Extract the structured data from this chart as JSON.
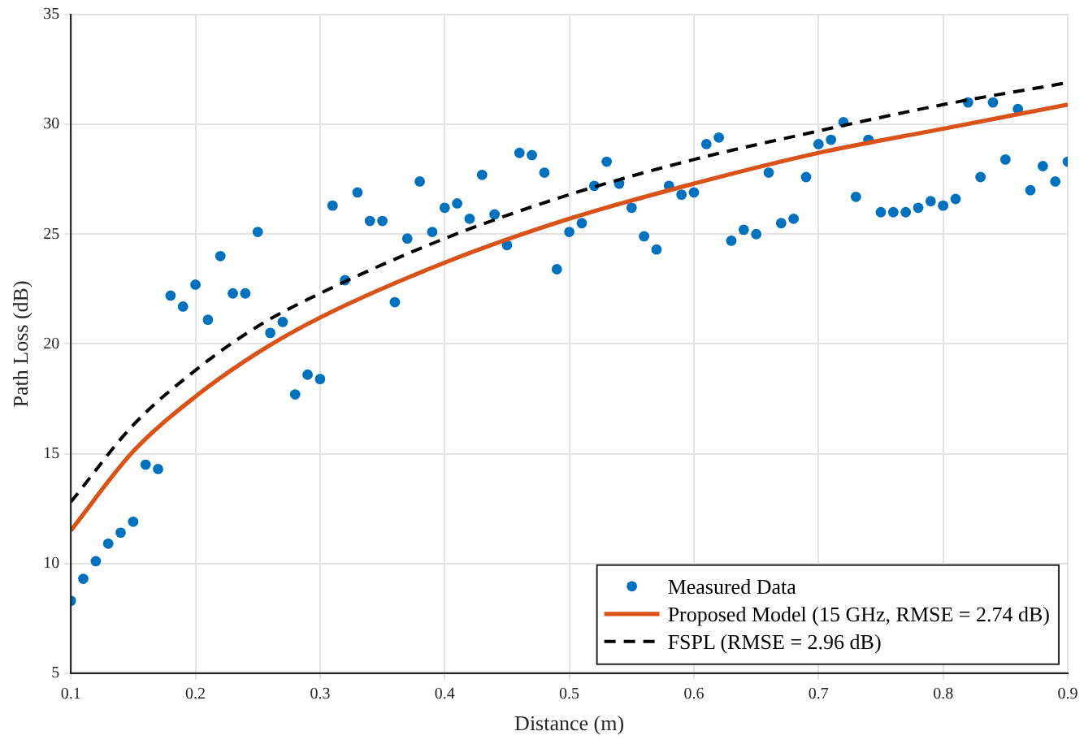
{
  "chart_data": {
    "type": "scatter",
    "xlabel": "Distance (m)",
    "ylabel": "Path Loss (dB)",
    "xlim": [
      0.1,
      0.9
    ],
    "xticks": [
      0.1,
      0.2,
      0.3,
      0.4,
      0.5,
      0.6,
      0.7,
      0.8,
      0.9
    ],
    "ylim": [
      5,
      35
    ],
    "yticks": [
      5,
      10,
      15,
      20,
      25,
      30,
      35
    ],
    "grid": true,
    "legend": "bottom right",
    "series": [
      {
        "name": "Measured Data",
        "type": "scatter",
        "marker": "circle",
        "color": "#0072bd",
        "x": [
          0.1,
          0.11,
          0.12,
          0.13,
          0.14,
          0.15,
          0.16,
          0.17,
          0.18,
          0.19,
          0.2,
          0.21,
          0.22,
          0.23,
          0.24,
          0.25,
          0.26,
          0.27,
          0.28,
          0.29,
          0.3,
          0.31,
          0.32,
          0.33,
          0.34,
          0.35,
          0.36,
          0.37,
          0.38,
          0.39,
          0.4,
          0.41,
          0.42,
          0.43,
          0.44,
          0.45,
          0.46,
          0.47,
          0.48,
          0.49,
          0.5,
          0.51,
          0.52,
          0.53,
          0.54,
          0.55,
          0.56,
          0.57,
          0.58,
          0.59,
          0.6,
          0.61,
          0.62,
          0.63,
          0.64,
          0.65,
          0.66,
          0.67,
          0.68,
          0.69,
          0.7,
          0.71,
          0.72,
          0.73,
          0.74,
          0.75,
          0.76,
          0.77,
          0.78,
          0.79,
          0.8,
          0.81,
          0.82,
          0.83,
          0.84,
          0.85,
          0.86,
          0.87,
          0.88,
          0.89,
          0.9
        ],
        "values": [
          8.3,
          9.3,
          10.1,
          10.9,
          11.4,
          11.9,
          14.5,
          14.3,
          22.2,
          21.7,
          22.7,
          21.1,
          24.0,
          22.3,
          22.3,
          25.1,
          20.5,
          21.0,
          17.7,
          18.6,
          18.4,
          26.3,
          22.9,
          26.9,
          25.6,
          25.6,
          21.9,
          24.8,
          27.4,
          25.1,
          26.2,
          26.4,
          25.7,
          27.7,
          25.9,
          24.5,
          28.7,
          28.6,
          27.8,
          23.4,
          25.1,
          25.5,
          27.2,
          28.3,
          27.3,
          26.2,
          24.9,
          24.3,
          27.2,
          26.8,
          26.9,
          29.1,
          29.4,
          24.7,
          25.2,
          25.0,
          27.8,
          25.5,
          25.7,
          27.6,
          29.1,
          29.3,
          30.1,
          26.7,
          29.3,
          26.0,
          26.0,
          26.0,
          26.2,
          26.5,
          26.3,
          26.6,
          31.0,
          27.6,
          31.0,
          28.4,
          30.7,
          27.0,
          28.1,
          27.4,
          28.3
        ]
      },
      {
        "name": "Proposed Model (15 GHz, RMSE = 2.74 dB)",
        "type": "line",
        "marker": "none",
        "line_style": "solid",
        "color": "#d95319",
        "x": [
          0.1,
          0.15,
          0.2,
          0.25,
          0.3,
          0.4,
          0.5,
          0.6,
          0.7,
          0.8,
          0.9
        ],
        "values": [
          11.5,
          15.1,
          17.6,
          19.6,
          21.2,
          23.7,
          25.7,
          27.3,
          28.7,
          29.8,
          30.9
        ]
      },
      {
        "name": "FSPL (RMSE = 2.96 dB)",
        "type": "line",
        "marker": "none",
        "line_style": "dashed",
        "color": "#000000",
        "x": [
          0.1,
          0.15,
          0.2,
          0.25,
          0.3,
          0.4,
          0.5,
          0.6,
          0.7,
          0.8,
          0.9
        ],
        "values": [
          12.8,
          16.3,
          18.8,
          20.8,
          22.3,
          24.8,
          26.8,
          28.4,
          29.7,
          30.9,
          31.9
        ]
      }
    ]
  }
}
